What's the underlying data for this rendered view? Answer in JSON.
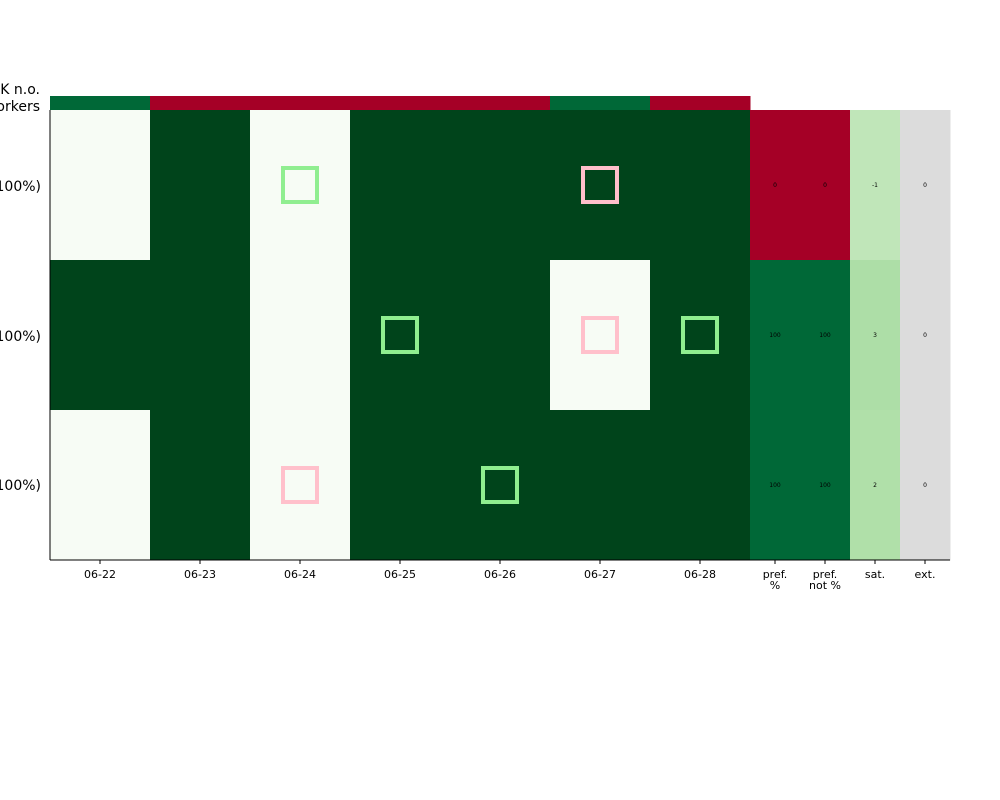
{
  "chart_data": {
    "type": "heatmap",
    "top_label": [
      "K n.o.",
      "orkers"
    ],
    "row_labels": [
      "100%)",
      "100%)",
      "100%)"
    ],
    "date_columns": [
      "06-22",
      "06-23",
      "06-24",
      "06-25",
      "06-26",
      "06-27",
      "06-28"
    ],
    "stat_columns": [
      {
        "label": [
          "pref.",
          "%"
        ]
      },
      {
        "label": [
          "pref.",
          "not %"
        ]
      },
      {
        "label": [
          "sat."
        ]
      },
      {
        "label": [
          "ext."
        ]
      }
    ],
    "ok_row": [
      1,
      0,
      0,
      0,
      0,
      1,
      0
    ],
    "assignments": [
      [
        0,
        1,
        0,
        1,
        1,
        1,
        1
      ],
      [
        1,
        1,
        0,
        1,
        1,
        0,
        1
      ],
      [
        0,
        1,
        0,
        1,
        1,
        1,
        1
      ]
    ],
    "preferred_markers": [
      {
        "row": 0,
        "col": 2
      },
      {
        "row": 1,
        "col": 3
      },
      {
        "row": 1,
        "col": 6
      },
      {
        "row": 2,
        "col": 4
      }
    ],
    "not_preferred_markers": [
      {
        "row": 0,
        "col": 5
      },
      {
        "row": 1,
        "col": 5
      },
      {
        "row": 2,
        "col": 2
      }
    ],
    "stats": [
      [
        "0",
        "0",
        "-1",
        "0"
      ],
      [
        "100",
        "100",
        "3",
        "0"
      ],
      [
        "100",
        "100",
        "2",
        "0"
      ]
    ],
    "colors": {
      "assigned": "#00441b",
      "unassigned": "#f7fcf5",
      "ok_good": "#006837",
      "ok_bad": "#a50026",
      "pref_high": "#006837",
      "pref_low": "#a50026",
      "sat_low": "#c0e6b9",
      "sat_mid": "#addea7",
      "sat_high": "#b0e0a9",
      "ext": "#dcdcdc",
      "marker_pref": "#90ee90",
      "marker_not_pref": "#ffc0cb"
    }
  }
}
